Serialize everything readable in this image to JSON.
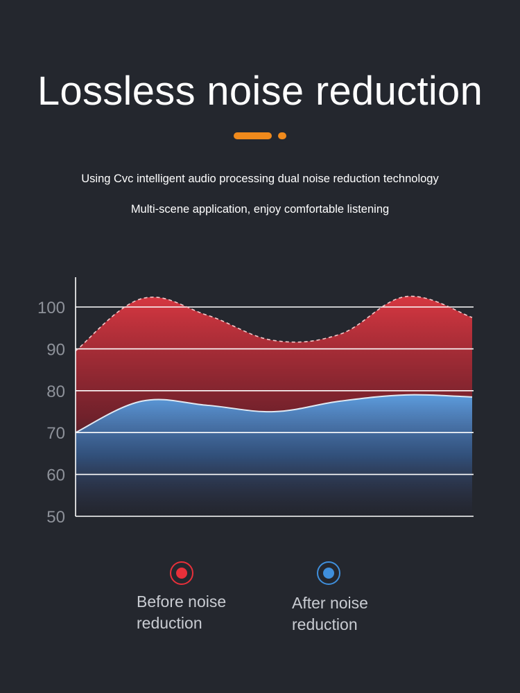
{
  "title": "Lossless noise reduction",
  "subtitle_line1": "Using Cvc intelligent audio processing dual noise reduction technology",
  "subtitle_line2": "Multi-scene application, enjoy comfortable listening",
  "colors": {
    "accent": "#f08a1c",
    "before": "#e8303a",
    "after": "#3f8fdc",
    "background": "#24272e"
  },
  "legend": [
    {
      "label_line1": "Before noise",
      "label_line2": "reduction",
      "color": "#e8303a"
    },
    {
      "label_line1": "After noise",
      "label_line2": "reduction",
      "color": "#3f8fdc"
    }
  ],
  "chart_data": {
    "type": "area",
    "title": "",
    "xlabel": "",
    "ylabel": "",
    "ylim": [
      50,
      100
    ],
    "yticks": [
      50,
      60,
      70,
      80,
      90,
      100
    ],
    "grid": true,
    "x": [
      0,
      1,
      2,
      3,
      4,
      5,
      6
    ],
    "series": [
      {
        "name": "Before noise reduction",
        "values": [
          89.5,
          102,
          98,
          92,
          93.5,
          102.5,
          97.5
        ],
        "style": "dashed-outline",
        "color": "#e8303a"
      },
      {
        "name": "After noise reduction",
        "values": [
          70,
          77.5,
          76.5,
          75,
          77.5,
          79,
          78.5
        ],
        "style": "solid-outline",
        "color": "#3f8fdc"
      }
    ]
  }
}
